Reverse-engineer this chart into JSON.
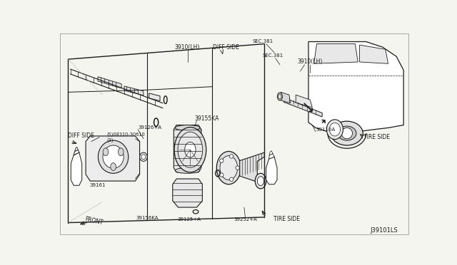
{
  "bg_color": "#f5f5f0",
  "lc": "#1a1a1a",
  "fig_id": "J39101LS",
  "labels": {
    "diff_side_left": "DIFF SIDE",
    "diff_side_top": "DIFF SIDE",
    "tire_side_right": "TIRE SIDE",
    "tire_side_bottom": "TIRE SIDE",
    "front": "FRONT",
    "sec381_1": "SEC.381",
    "sec381_2": "SEC.381",
    "p3910klh_top": "3910(LH)",
    "p3910klh_right": "3910(LH)",
    "p08310": "(S)08310-30610\n(3)",
    "p39126": "39126+A",
    "p39155ka": "39155KA",
    "p39161": "39161",
    "p39156ka": "39156KA",
    "p39125a": "39125+A",
    "p39252a": "39252+A",
    "p39110a": "39110A"
  }
}
